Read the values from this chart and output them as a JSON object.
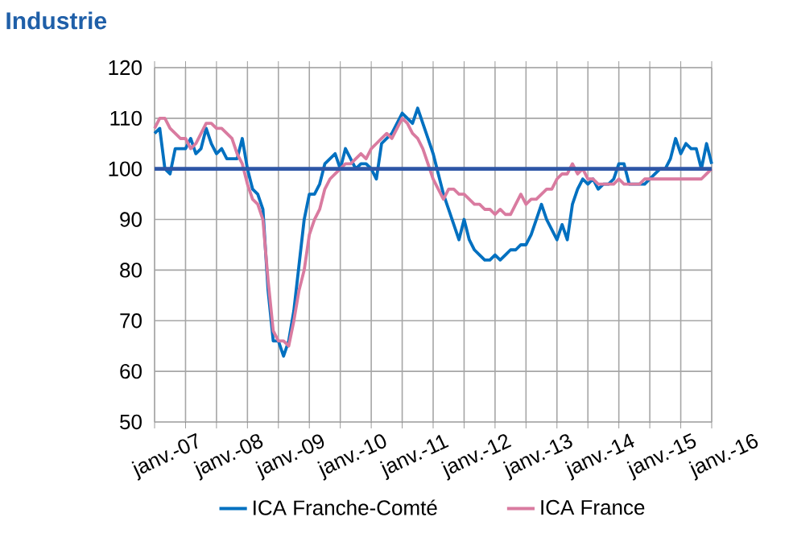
{
  "chart_data": {
    "type": "line",
    "title": "Industrie",
    "x": [
      "2007-01",
      "2007-02",
      "2007-03",
      "2007-04",
      "2007-05",
      "2007-06",
      "2007-07",
      "2007-08",
      "2007-09",
      "2007-10",
      "2007-11",
      "2007-12",
      "2008-01",
      "2008-02",
      "2008-03",
      "2008-04",
      "2008-05",
      "2008-06",
      "2008-07",
      "2008-08",
      "2008-09",
      "2008-10",
      "2008-11",
      "2008-12",
      "2009-01",
      "2009-02",
      "2009-03",
      "2009-04",
      "2009-05",
      "2009-06",
      "2009-07",
      "2009-08",
      "2009-09",
      "2009-10",
      "2009-11",
      "2009-12",
      "2010-01",
      "2010-02",
      "2010-03",
      "2010-04",
      "2010-05",
      "2010-06",
      "2010-07",
      "2010-08",
      "2010-09",
      "2010-10",
      "2010-11",
      "2010-12",
      "2011-01",
      "2011-02",
      "2011-03",
      "2011-04",
      "2011-05",
      "2011-06",
      "2011-07",
      "2011-08",
      "2011-09",
      "2011-10",
      "2011-11",
      "2011-12",
      "2012-01",
      "2012-02",
      "2012-03",
      "2012-04",
      "2012-05",
      "2012-06",
      "2012-07",
      "2012-08",
      "2012-09",
      "2012-10",
      "2012-11",
      "2012-12",
      "2013-01",
      "2013-02",
      "2013-03",
      "2013-04",
      "2013-05",
      "2013-06",
      "2013-07",
      "2013-08",
      "2013-09",
      "2013-10",
      "2013-11",
      "2013-12",
      "2014-01",
      "2014-02",
      "2014-03",
      "2014-04",
      "2014-05",
      "2014-06",
      "2014-07",
      "2014-08",
      "2014-09",
      "2014-10",
      "2014-11",
      "2014-12",
      "2015-01",
      "2015-02",
      "2015-03",
      "2015-04",
      "2015-05",
      "2015-06",
      "2015-07",
      "2015-08",
      "2015-09",
      "2015-10",
      "2015-11",
      "2015-12",
      "2016-01"
    ],
    "series": [
      {
        "name": "ICA Franche-Comté",
        "color": "#0070c0",
        "values": [
          107,
          108,
          100,
          99,
          104,
          104,
          104,
          106,
          103,
          104,
          108,
          105,
          103,
          104,
          102,
          102,
          102,
          106,
          100,
          96,
          95,
          92,
          76,
          66,
          66,
          63,
          66,
          72,
          81,
          90,
          95,
          95,
          97,
          101,
          102,
          103,
          100,
          104,
          102,
          100,
          101,
          101,
          100,
          98,
          105,
          106,
          107,
          109,
          111,
          110,
          109,
          112,
          109,
          106,
          103,
          99,
          95,
          92,
          89,
          86,
          90,
          86,
          84,
          83,
          82,
          82,
          83,
          82,
          83,
          84,
          84,
          85,
          85,
          87,
          90,
          93,
          90,
          88,
          86,
          89,
          86,
          93,
          96,
          98,
          97,
          98,
          96,
          97,
          97,
          98,
          101,
          101,
          97,
          97,
          97,
          97,
          98,
          99,
          100,
          100,
          102,
          106,
          103,
          105,
          104,
          104,
          100,
          105,
          101
        ]
      },
      {
        "name": "ICA France",
        "color": "#d97ba0",
        "values": [
          108,
          110,
          110,
          108,
          107,
          106,
          106,
          104,
          105,
          107,
          109,
          109,
          108,
          108,
          107,
          106,
          103,
          101,
          97,
          94,
          93,
          90,
          78,
          68,
          66,
          66,
          65,
          70,
          76,
          80,
          87,
          90,
          92,
          96,
          98,
          99,
          100,
          101,
          101,
          102,
          103,
          102,
          104,
          105,
          106,
          107,
          106,
          108,
          110,
          109,
          107,
          106,
          104,
          101,
          98,
          96,
          94,
          96,
          96,
          95,
          95,
          94,
          93,
          93,
          92,
          92,
          91,
          92,
          91,
          91,
          93,
          95,
          93,
          94,
          94,
          95,
          96,
          96,
          98,
          99,
          99,
          101,
          99,
          100,
          98,
          98,
          97,
          97,
          97,
          97,
          98,
          97,
          97,
          97,
          97,
          98,
          98,
          98,
          98,
          98,
          98,
          98,
          98,
          98,
          98,
          98,
          98,
          99,
          100
        ]
      }
    ],
    "xlim": [
      "2007-01",
      "2016-01"
    ],
    "xticks": [
      {
        "value": "2007-01",
        "label": "janv.-07"
      },
      {
        "value": "2007-07",
        "label": null
      },
      {
        "value": "2008-01",
        "label": "janv.-08"
      },
      {
        "value": "2008-07",
        "label": null
      },
      {
        "value": "2009-01",
        "label": "janv.-09"
      },
      {
        "value": "2009-07",
        "label": null
      },
      {
        "value": "2010-01",
        "label": "janv.-10"
      },
      {
        "value": "2010-07",
        "label": null
      },
      {
        "value": "2011-01",
        "label": "janv.-11"
      },
      {
        "value": "2011-07",
        "label": null
      },
      {
        "value": "2012-01",
        "label": "janv.-12"
      },
      {
        "value": "2012-07",
        "label": null
      },
      {
        "value": "2013-01",
        "label": "janv.-13"
      },
      {
        "value": "2013-07",
        "label": null
      },
      {
        "value": "2014-01",
        "label": "janv.-14"
      },
      {
        "value": "2014-07",
        "label": null
      },
      {
        "value": "2015-01",
        "label": "janv.-15"
      },
      {
        "value": "2015-07",
        "label": null
      },
      {
        "value": "2016-01",
        "label": "janv.-16"
      }
    ],
    "ylim": [
      50,
      120
    ],
    "yticks": [
      50,
      60,
      70,
      80,
      90,
      100,
      110,
      120
    ],
    "ref_lines": [
      {
        "axis": "y",
        "value": 100,
        "color": "#2e56a6"
      }
    ],
    "grid": true,
    "legend": "bottom"
  }
}
